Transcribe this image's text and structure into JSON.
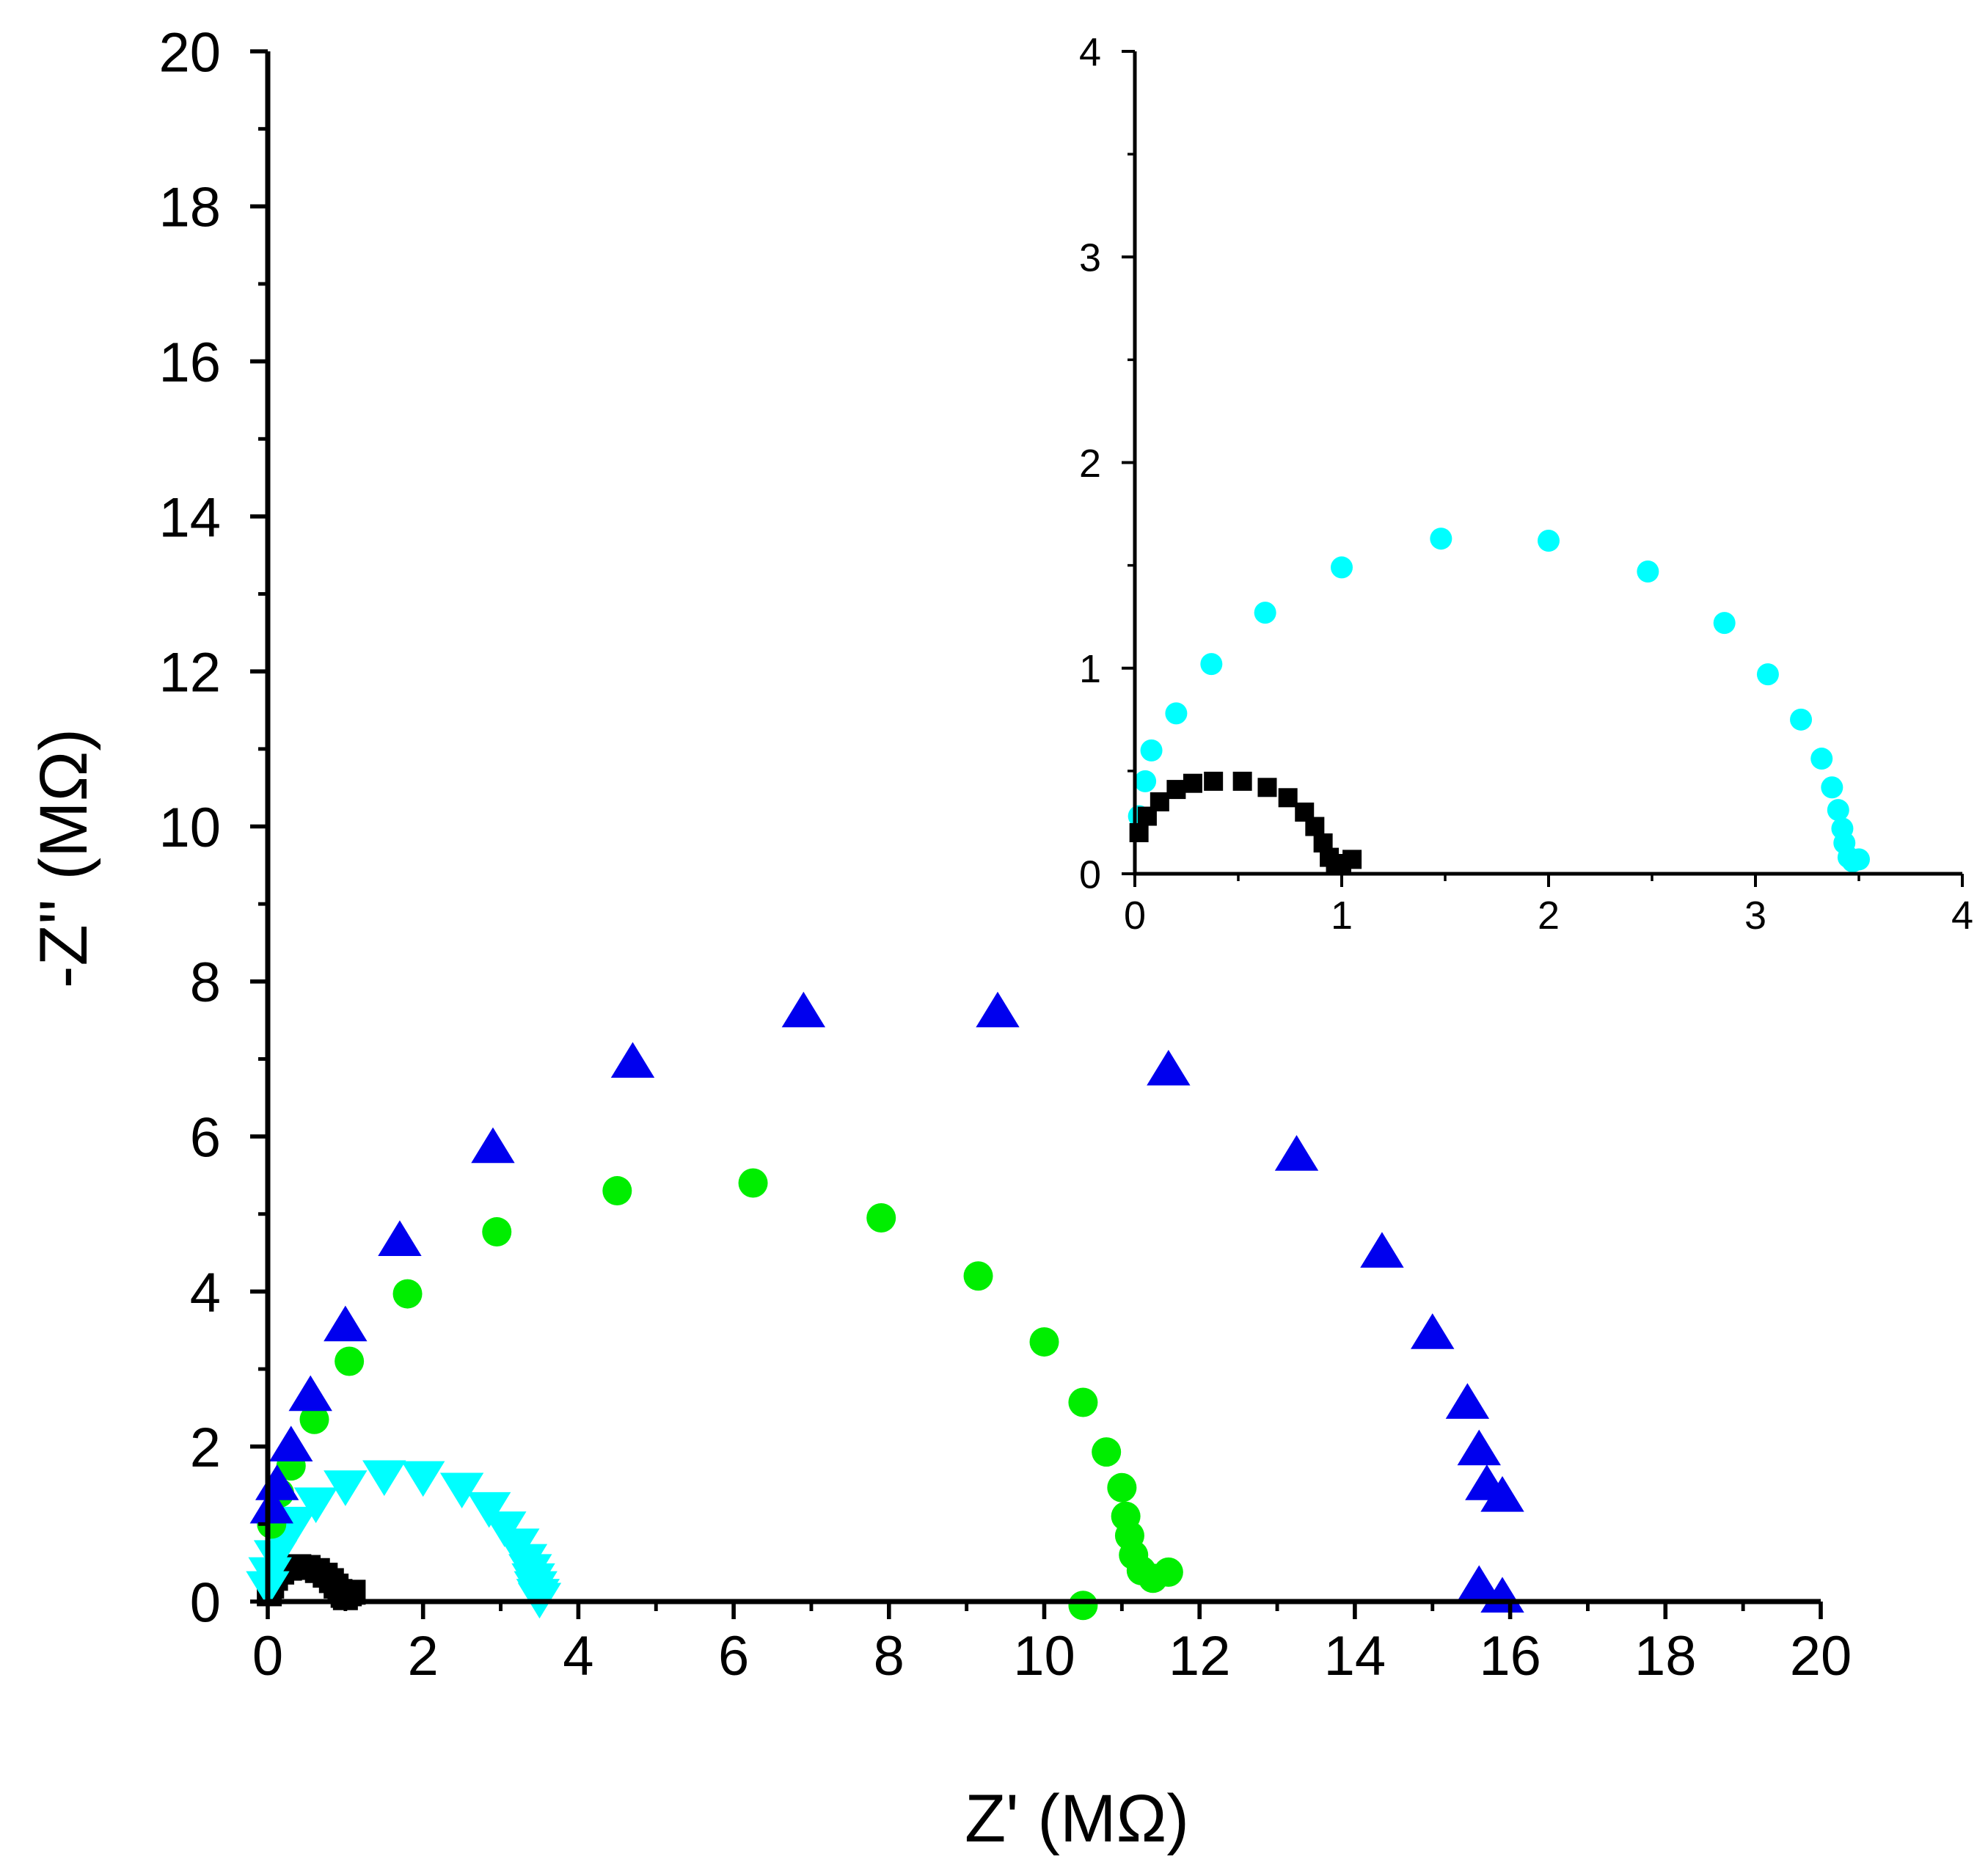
{
  "chart_data": [
    {
      "name": "main",
      "type": "scatter",
      "xlabel": "Z' (MΩ)",
      "ylabel": "-Z'' (MΩ)",
      "xlim": [
        0,
        20
      ],
      "ylim": [
        0,
        20
      ],
      "xticks": [
        "0",
        "2",
        "4",
        "6",
        "8",
        "10",
        "12",
        "14",
        "16",
        "18",
        "20"
      ],
      "yticks": [
        "0",
        "2",
        "4",
        "6",
        "8",
        "10",
        "12",
        "14",
        "16",
        "18",
        "20"
      ],
      "series": [
        {
          "name": "black squares",
          "marker": "square",
          "color": "#000000",
          "x": [
            0.02,
            0.05,
            0.1,
            0.18,
            0.28,
            0.4,
            0.52,
            0.64,
            0.74,
            0.82,
            0.88,
            0.93,
            0.97,
            1.0,
            1.05,
            1.1
          ],
          "y": [
            0.1,
            0.2,
            0.3,
            0.38,
            0.43,
            0.45,
            0.44,
            0.4,
            0.34,
            0.27,
            0.2,
            0.13,
            0.08,
            0.05,
            0.1,
            0.12
          ]
        },
        {
          "name": "cyan triangles down",
          "marker": "triangle-down",
          "color": "#00ffff",
          "x": [
            0.0,
            0.03,
            0.1,
            0.2,
            0.36,
            0.62,
            1.0,
            1.5,
            2.0,
            2.5,
            2.85,
            3.05,
            3.22,
            3.32,
            3.38,
            3.42,
            3.45,
            3.48,
            3.5
          ],
          "y": [
            0.2,
            0.38,
            0.6,
            0.8,
            1.03,
            1.28,
            1.5,
            1.63,
            1.62,
            1.47,
            1.22,
            0.97,
            0.75,
            0.55,
            0.42,
            0.3,
            0.2,
            0.1,
            0.05
          ]
        },
        {
          "name": "green circles",
          "marker": "circle",
          "color": "#00ee00",
          "x": [
            0.05,
            0.15,
            0.3,
            0.6,
            1.05,
            1.8,
            2.95,
            4.5,
            6.25,
            7.9,
            9.15,
            10.0,
            10.5,
            10.8,
            11.0,
            11.05,
            11.1,
            11.15,
            11.25,
            11.4,
            11.6,
            10.5
          ],
          "y": [
            1.0,
            1.4,
            1.75,
            2.35,
            3.1,
            3.97,
            4.77,
            5.3,
            5.4,
            4.95,
            4.2,
            3.35,
            2.57,
            1.93,
            1.47,
            1.1,
            0.85,
            0.6,
            0.4,
            0.3,
            0.38,
            -0.05
          ]
        },
        {
          "name": "blue triangles up",
          "marker": "triangle-up",
          "color": "#0000ee",
          "x": [
            0.05,
            0.12,
            0.3,
            0.55,
            1.0,
            1.7,
            2.9,
            4.7,
            6.9,
            9.4,
            11.6,
            13.25,
            14.35,
            15.0,
            15.45,
            15.6,
            15.7,
            15.9,
            15.6,
            15.9
          ],
          "y": [
            1.2,
            1.5,
            2.0,
            2.65,
            3.55,
            4.65,
            5.85,
            6.95,
            7.6,
            7.6,
            6.85,
            5.75,
            4.5,
            3.45,
            2.55,
            1.95,
            1.5,
            1.35,
            0.2,
            0.05
          ]
        }
      ]
    },
    {
      "name": "inset",
      "type": "scatter",
      "xlabel": "",
      "ylabel": "",
      "xlim": [
        0,
        4
      ],
      "ylim": [
        0,
        4
      ],
      "xticks": [
        "0",
        "1",
        "2",
        "3",
        "4"
      ],
      "yticks": [
        "0",
        "1",
        "2",
        "3",
        "4"
      ],
      "series": [
        {
          "name": "cyan circles",
          "marker": "circle",
          "color": "#00ffff",
          "x": [
            0.02,
            0.05,
            0.08,
            0.2,
            0.37,
            0.63,
            1.0,
            1.48,
            2.0,
            2.48,
            2.85,
            3.06,
            3.22,
            3.32,
            3.37,
            3.4,
            3.42,
            3.43,
            3.45,
            3.47,
            3.5
          ],
          "y": [
            0.28,
            0.45,
            0.6,
            0.78,
            1.02,
            1.27,
            1.49,
            1.63,
            1.62,
            1.47,
            1.22,
            0.97,
            0.75,
            0.56,
            0.42,
            0.31,
            0.22,
            0.15,
            0.08,
            0.06,
            0.07
          ]
        },
        {
          "name": "black squares",
          "marker": "square",
          "color": "#000000",
          "x": [
            0.02,
            0.06,
            0.12,
            0.2,
            0.28,
            0.38,
            0.52,
            0.64,
            0.74,
            0.82,
            0.87,
            0.91,
            0.94,
            0.97,
            1.0,
            1.05
          ],
          "y": [
            0.2,
            0.28,
            0.35,
            0.41,
            0.44,
            0.45,
            0.45,
            0.42,
            0.37,
            0.3,
            0.23,
            0.15,
            0.08,
            0.04,
            0.05,
            0.07
          ]
        }
      ]
    }
  ]
}
